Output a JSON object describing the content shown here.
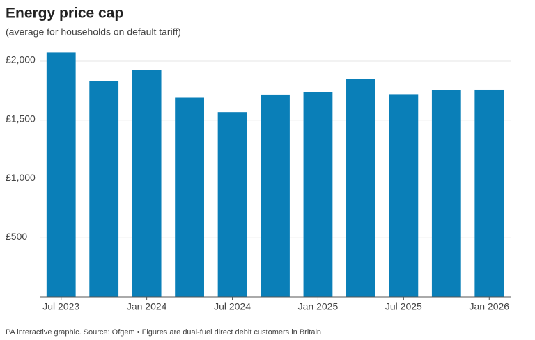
{
  "chart_data": {
    "type": "bar",
    "title": "Energy price cap",
    "subtitle": "(average for households on default tariff)",
    "source": "PA interactive graphic. Source: Ofgem • Figures are dual-fuel direct debit customers in Britain",
    "categories": [
      "Jul 2023",
      null,
      "Jan 2024",
      null,
      "Jul 2024",
      null,
      "Jan 2025",
      null,
      "Jul 2025",
      null,
      "Jan 2026"
    ],
    "values": [
      2074,
      1834,
      1928,
      1690,
      1568,
      1717,
      1738,
      1849,
      1720,
      1755,
      1758
    ],
    "color": "#0a7fb8",
    "ylim": [
      0,
      2100
    ],
    "yticks": [
      {
        "value": 500,
        "label": "£500"
      },
      {
        "value": 1000,
        "label": "£1,000"
      },
      {
        "value": 1500,
        "label": "£1,500"
      },
      {
        "value": 2000,
        "label": "£2,000"
      }
    ],
    "grid": true
  }
}
